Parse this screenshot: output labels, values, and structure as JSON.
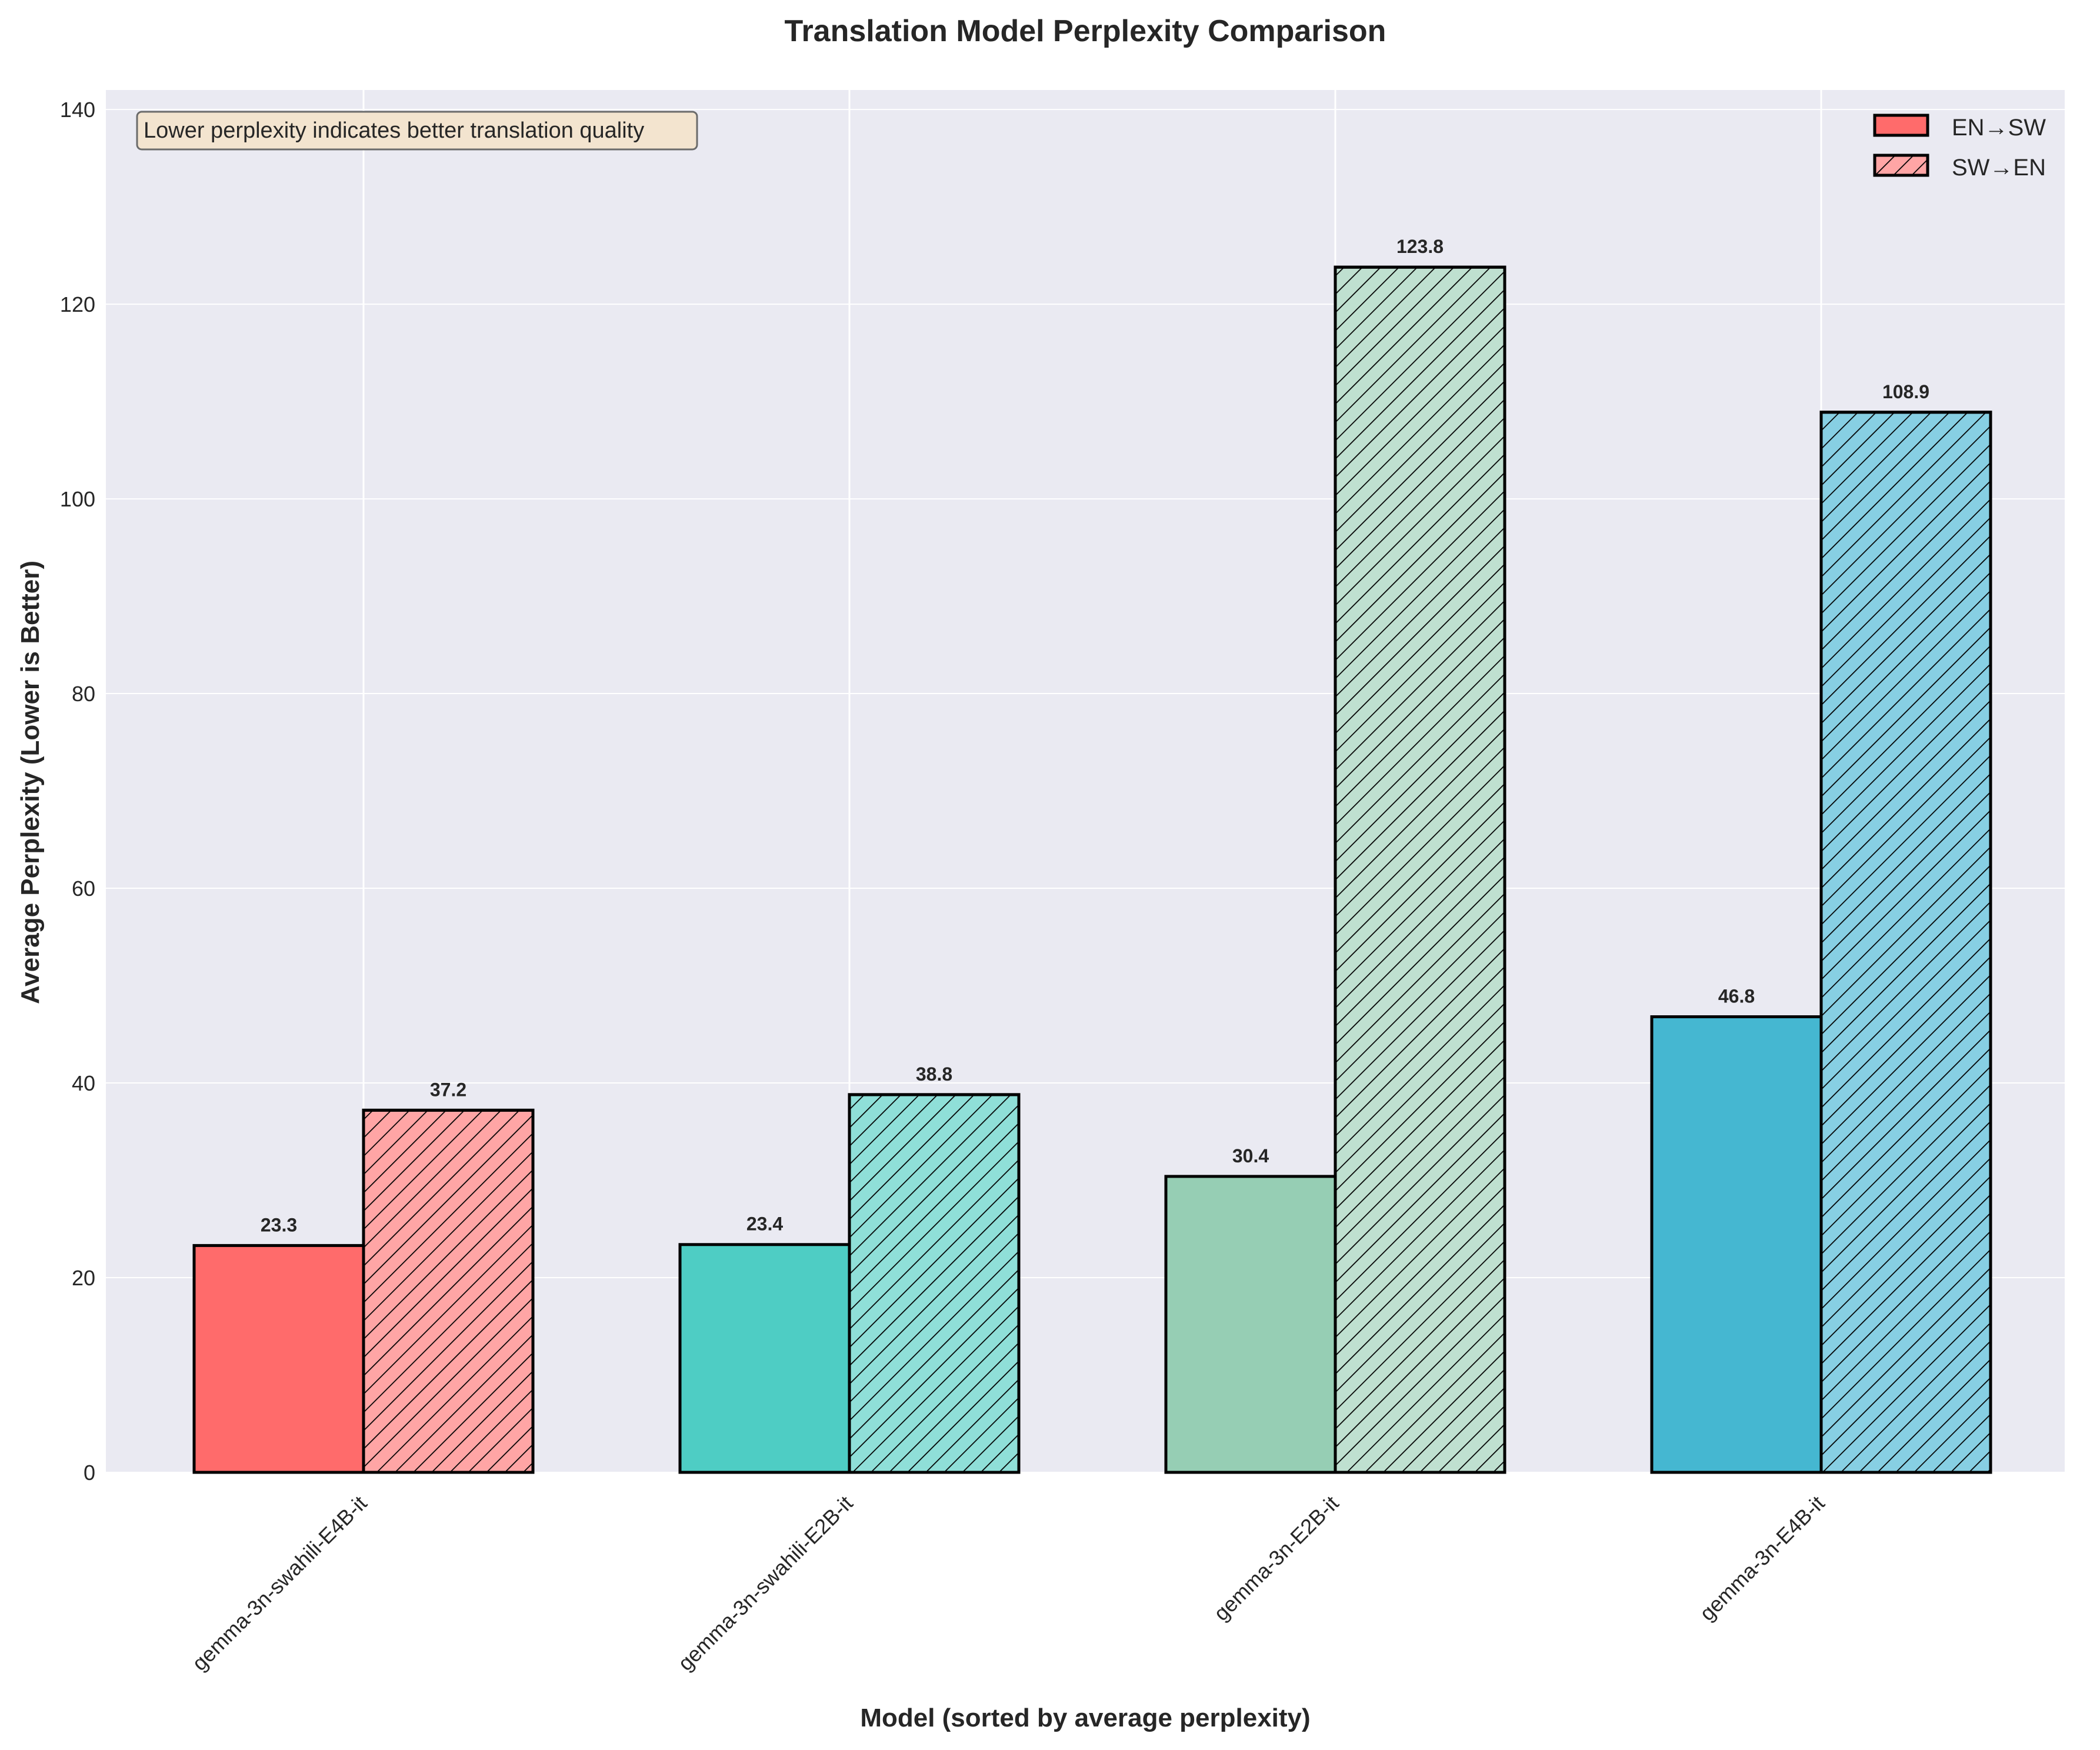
{
  "chart_data": {
    "type": "bar",
    "title": "Translation Model Perplexity Comparison",
    "xlabel": "Model (sorted by average perplexity)",
    "ylabel": "Average Perplexity (Lower is Better)",
    "ylim": [
      0,
      142
    ],
    "yticks": [
      0,
      20,
      40,
      60,
      80,
      100,
      120,
      140
    ],
    "grid": true,
    "legend_position": "top-right",
    "annotation": "Lower perplexity indicates better translation quality",
    "categories": [
      "gemma-3n-swahili-E4B-it",
      "gemma-3n-swahili-E2B-it",
      "gemma-3n-E2B-it",
      "gemma-3n-E4B-it"
    ],
    "series": [
      {
        "name": "EN→SW",
        "values": [
          23.3,
          23.4,
          30.4,
          46.8
        ],
        "hatch": false
      },
      {
        "name": "SW→EN",
        "values": [
          37.2,
          38.8,
          123.8,
          108.9
        ],
        "hatch": true
      }
    ],
    "value_labels": [
      [
        "23.3",
        "23.4",
        "30.4",
        "46.8"
      ],
      [
        "37.2",
        "38.8",
        "123.8",
        "108.9"
      ]
    ],
    "category_colors": [
      "#ff6b6b",
      "#4ecdc4",
      "#96ceb4",
      "#45b7d1"
    ],
    "category_colors_light": [
      "#ffa5a5",
      "#8fdfd8",
      "#bfe0d0",
      "#87cfe3"
    ],
    "legend_colors": [
      "#ff6b6b",
      "#ffa5a5"
    ],
    "plot_background": "#eaeaf2"
  }
}
